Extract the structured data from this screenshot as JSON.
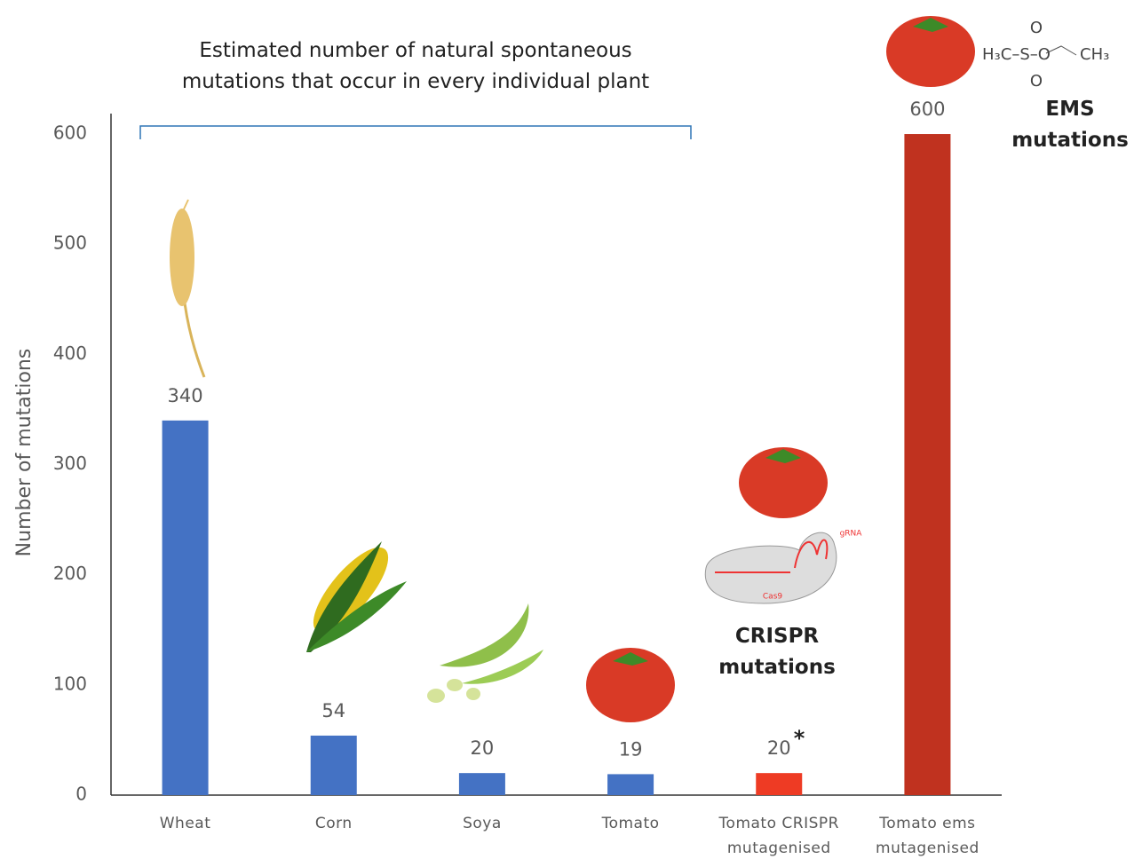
{
  "chart_data": {
    "type": "bar",
    "y_axis_label": "Number of mutations",
    "categories": [
      "Wheat",
      "Corn",
      "Soya",
      "Tomato",
      "Tomato CRISPR mutagenised",
      "Tomato ems mutagenised"
    ],
    "values": [
      340,
      54,
      20,
      19,
      20,
      600
    ],
    "colors": [
      "#4472c4",
      "#4472c4",
      "#4472c4",
      "#4472c4",
      "#ee3b24",
      "#c0321f"
    ],
    "ylim": [
      0,
      620
    ],
    "yticks": [
      0,
      100,
      200,
      300,
      400,
      500,
      600
    ],
    "grid": false,
    "annotations": [
      "Estimated number of natural spontaneous mutations that occur in every individual plant",
      "CRISPR mutations",
      "EMS mutations",
      "*",
      "gRNA",
      "Cas9",
      "H₃C–S–O",
      "CH₃",
      "O",
      "O"
    ]
  }
}
